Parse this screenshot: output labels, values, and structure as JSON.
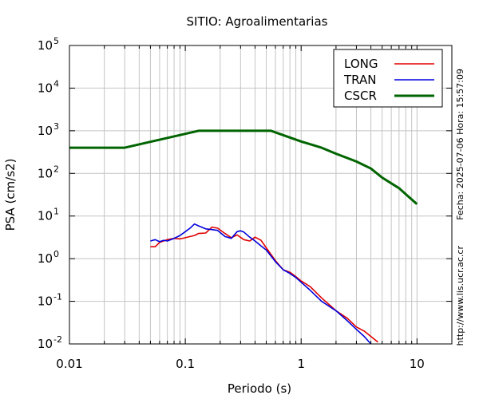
{
  "chart_data": {
    "type": "line",
    "title": "SITIO: Agroalimentarias",
    "xlabel": "Periodo (s)",
    "ylabel": "PSA (cm/s2)",
    "x_scale": "log",
    "y_scale": "log",
    "xlim": [
      0.01,
      20
    ],
    "ylim": [
      0.01,
      100000
    ],
    "grid": true,
    "legend_position": "top-right",
    "x_ticks": [
      {
        "value": 0.01,
        "label": "0.01"
      },
      {
        "value": 0.1,
        "label": "0.1"
      },
      {
        "value": 1,
        "label": "1"
      },
      {
        "value": 10,
        "label": "10"
      }
    ],
    "y_ticks": [
      {
        "value": 0.01,
        "base": "10",
        "exp": "-2"
      },
      {
        "value": 0.1,
        "base": "10",
        "exp": "-1"
      },
      {
        "value": 1,
        "base": "10",
        "exp": "0"
      },
      {
        "value": 10,
        "base": "10",
        "exp": "1"
      },
      {
        "value": 100,
        "base": "10",
        "exp": "2"
      },
      {
        "value": 1000,
        "base": "10",
        "exp": "3"
      },
      {
        "value": 10000,
        "base": "10",
        "exp": "4"
      },
      {
        "value": 100000,
        "base": "10",
        "exp": "5"
      }
    ],
    "series": [
      {
        "name": "LONG",
        "color": "#e00000",
        "x": [
          0.05,
          0.055,
          0.06,
          0.065,
          0.07,
          0.08,
          0.09,
          0.1,
          0.11,
          0.12,
          0.13,
          0.15,
          0.17,
          0.19,
          0.22,
          0.25,
          0.28,
          0.32,
          0.36,
          0.4,
          0.45,
          0.5,
          0.6,
          0.7,
          0.8,
          0.9,
          1.0,
          1.2,
          1.5,
          2.0,
          2.5,
          3.0,
          3.5,
          4.0,
          4.6
        ],
        "y": [
          1.9,
          1.9,
          2.4,
          2.6,
          2.8,
          3.0,
          2.9,
          3.1,
          3.3,
          3.5,
          3.9,
          4.0,
          5.5,
          5.2,
          3.9,
          3.1,
          3.6,
          2.8,
          2.6,
          3.2,
          2.7,
          1.8,
          0.9,
          0.55,
          0.48,
          0.38,
          0.3,
          0.22,
          0.12,
          0.06,
          0.04,
          0.025,
          0.02,
          0.015,
          0.011
        ]
      },
      {
        "name": "TRAN",
        "color": "#0000dd",
        "x": [
          0.05,
          0.055,
          0.06,
          0.065,
          0.07,
          0.08,
          0.09,
          0.1,
          0.11,
          0.12,
          0.13,
          0.15,
          0.17,
          0.19,
          0.22,
          0.25,
          0.28,
          0.3,
          0.32,
          0.36,
          0.4,
          0.45,
          0.5,
          0.6,
          0.7,
          0.8,
          0.9,
          1.0,
          1.2,
          1.5,
          2.0,
          2.5,
          3.0,
          3.5,
          4.0
        ],
        "y": [
          2.6,
          2.8,
          2.5,
          2.7,
          2.6,
          3.0,
          3.5,
          4.3,
          5.2,
          6.5,
          5.9,
          5.0,
          4.8,
          4.6,
          3.3,
          3.0,
          4.3,
          4.5,
          4.2,
          3.2,
          2.6,
          2.0,
          1.6,
          0.85,
          0.55,
          0.45,
          0.36,
          0.28,
          0.18,
          0.1,
          0.06,
          0.035,
          0.022,
          0.015,
          0.01
        ]
      },
      {
        "name": "CSCR",
        "color": "#006400",
        "x": [
          0.01,
          0.03,
          0.13,
          0.55,
          1.0,
          1.5,
          2.0,
          2.5,
          3.0,
          4.0,
          5.0,
          7.0,
          10.0
        ],
        "y": [
          400,
          400,
          1000,
          1000,
          560,
          400,
          290,
          230,
          190,
          130,
          80,
          45,
          19
        ]
      }
    ],
    "side_text_top": "Fecha: 2025-07-06 Hora: 15:57:09",
    "side_text_bottom": "http://www.lis.ucr.ac.cr"
  }
}
